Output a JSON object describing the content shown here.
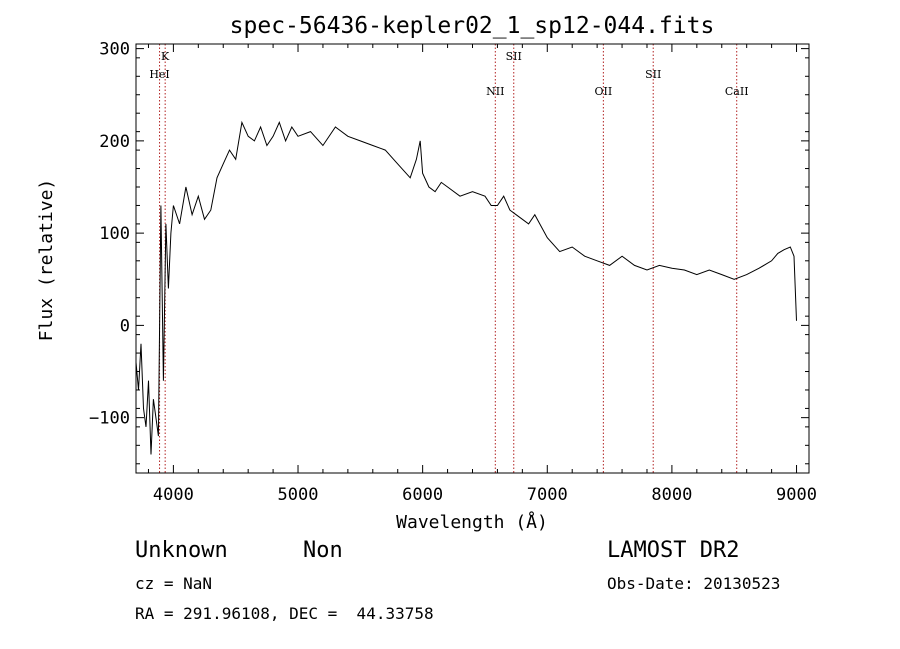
{
  "chart_data": {
    "type": "line",
    "title": "spec-56436-kepler02_1_sp12-044.fits",
    "xlabel": "Wavelength (Å)",
    "ylabel": "Flux (relative)",
    "xlim": [
      3700,
      9100
    ],
    "ylim": [
      -160,
      305
    ],
    "x_ticks": [
      4000,
      5000,
      6000,
      7000,
      8000,
      9000
    ],
    "y_ticks": [
      -100,
      0,
      100,
      200,
      300
    ],
    "line_color": "#000000",
    "marker_color": "#b22222",
    "grid": false,
    "lines": [
      {
        "label": "K",
        "x": 3934
      },
      {
        "label": "HeI",
        "x": 3889
      },
      {
        "label": "NII",
        "x": 6583
      },
      {
        "label": "SII",
        "x": 6731
      },
      {
        "label": "OII",
        "x": 7450
      },
      {
        "label": "SII",
        "x": 7850
      },
      {
        "label": "CaII",
        "x": 8520
      }
    ],
    "series": [
      {
        "x": [
          3700,
          3720,
          3740,
          3760,
          3780,
          3800,
          3820,
          3840,
          3860,
          3880,
          3900,
          3920,
          3940,
          3960,
          3980,
          4000,
          4050,
          4100,
          4150,
          4200,
          4250,
          4300,
          4350,
          4400,
          4450,
          4500,
          4550,
          4600,
          4650,
          4700,
          4750,
          4800,
          4850,
          4900,
          4950,
          5000,
          5100,
          5200,
          5300,
          5400,
          5500,
          5600,
          5700,
          5800,
          5900,
          5950,
          5980,
          6000,
          6050,
          6100,
          6150,
          6200,
          6300,
          6400,
          6500,
          6550,
          6600,
          6650,
          6700,
          6750,
          6800,
          6850,
          6900,
          7000,
          7100,
          7200,
          7300,
          7400,
          7500,
          7600,
          7700,
          7800,
          7900,
          8000,
          8100,
          8200,
          8300,
          8400,
          8500,
          8600,
          8700,
          8800,
          8850,
          8900,
          8950,
          8980,
          9000
        ],
        "values": [
          -40,
          -70,
          -20,
          -90,
          -110,
          -60,
          -140,
          -80,
          -100,
          -120,
          130,
          -60,
          110,
          40,
          100,
          130,
          110,
          150,
          120,
          140,
          115,
          125,
          160,
          175,
          190,
          180,
          220,
          205,
          200,
          215,
          195,
          205,
          220,
          200,
          215,
          205,
          210,
          195,
          215,
          205,
          200,
          195,
          190,
          175,
          160,
          180,
          200,
          165,
          150,
          145,
          155,
          150,
          140,
          145,
          140,
          130,
          130,
          140,
          125,
          120,
          115,
          110,
          120,
          95,
          80,
          85,
          75,
          70,
          65,
          75,
          65,
          60,
          65,
          62,
          60,
          55,
          60,
          55,
          50,
          55,
          62,
          70,
          78,
          82,
          85,
          75,
          5
        ]
      }
    ]
  },
  "info": {
    "object_class": "Unknown",
    "object_subclass": "Non",
    "cz": "cz = NaN",
    "radec": "RA = 291.96108, DEC =  44.33758",
    "survey": "LAMOST DR2",
    "obs_date": "Obs-Date: 20130523"
  }
}
